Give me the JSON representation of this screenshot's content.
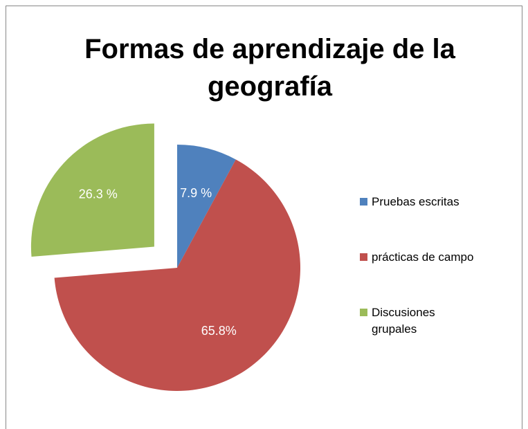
{
  "chart_data": {
    "type": "pie",
    "title": "Formas de aprendizaje de la geografía",
    "categories": [
      "Pruebas escritas",
      "prácticas de campo",
      "Discusiones grupales"
    ],
    "values": [
      7.9,
      65.8,
      26.3
    ],
    "value_labels": [
      "7.9 %",
      "65.8%",
      "26.3 %"
    ],
    "colors": [
      "#4f81bd",
      "#c0504d",
      "#9bbb59"
    ],
    "exploded": [
      false,
      false,
      true
    ],
    "legend": "right"
  }
}
